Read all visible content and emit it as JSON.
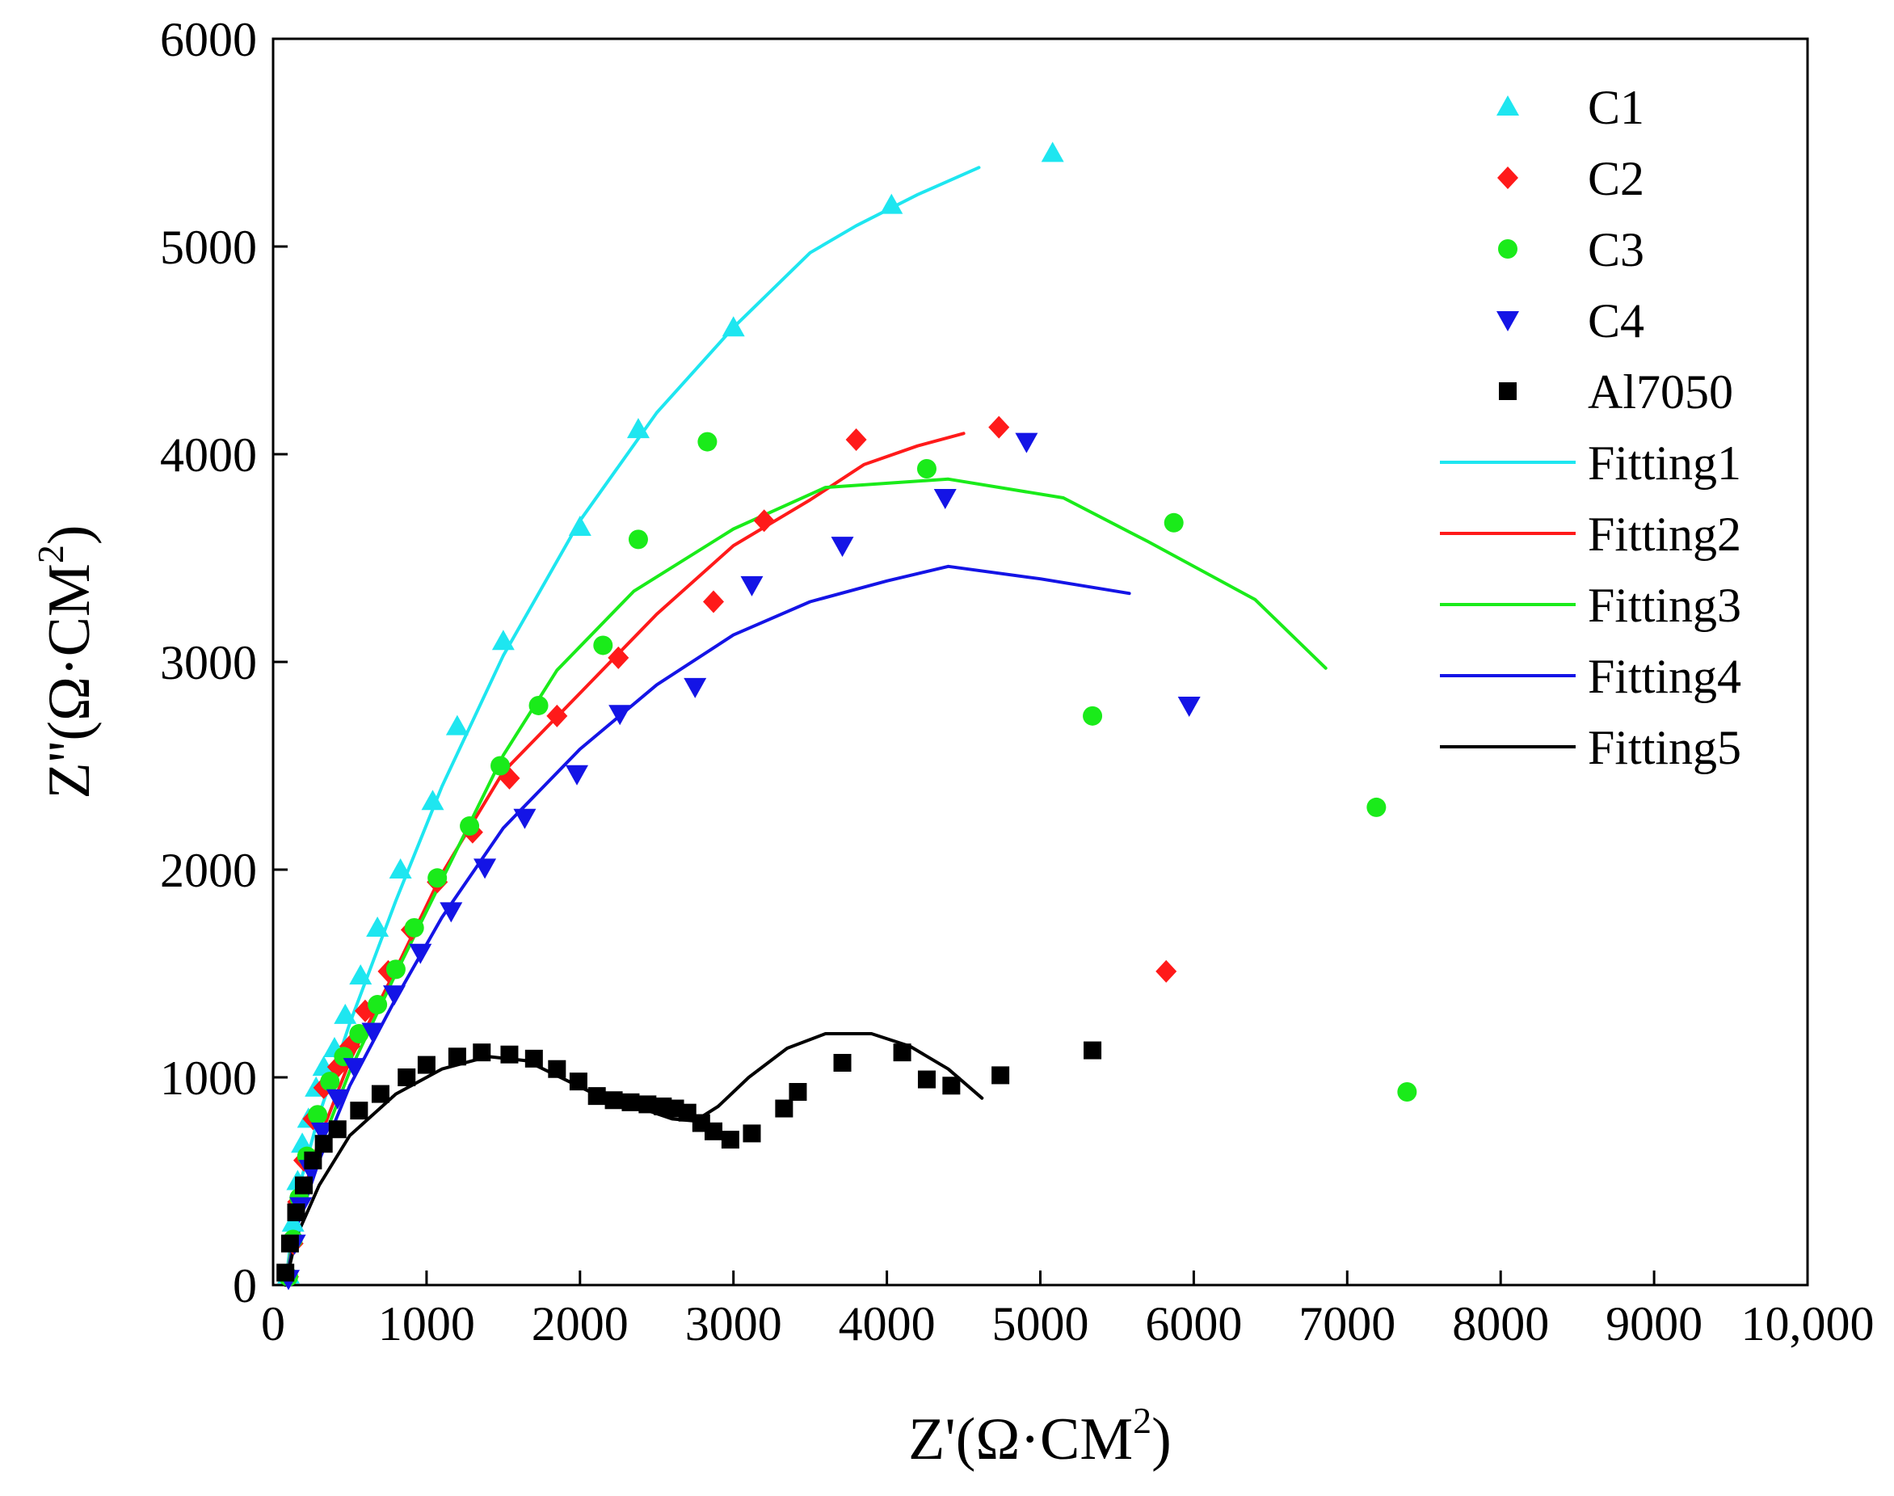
{
  "chart_data": {
    "type": "scatter",
    "title": "",
    "xlabel": {
      "main": "Z'(Ω·CM",
      "sup": "2",
      "close": ")"
    },
    "ylabel": {
      "main": "Z''(Ω·CM",
      "sup": "2",
      "close": ")"
    },
    "xlim": [
      0,
      10000
    ],
    "ylim": [
      0,
      6000
    ],
    "x_ticks": [
      {
        "value": 0,
        "label": "0"
      },
      {
        "value": 1000,
        "label": "1000"
      },
      {
        "value": 2000,
        "label": "2000"
      },
      {
        "value": 3000,
        "label": "3000"
      },
      {
        "value": 4000,
        "label": "4000"
      },
      {
        "value": 5000,
        "label": "5000"
      },
      {
        "value": 6000,
        "label": "6000"
      },
      {
        "value": 7000,
        "label": "7000"
      },
      {
        "value": 8000,
        "label": "8000"
      },
      {
        "value": 9000,
        "label": "9000"
      },
      {
        "value": 10000,
        "label": "10,000"
      }
    ],
    "y_ticks": [
      {
        "value": 0,
        "label": "0"
      },
      {
        "value": 1000,
        "label": "1000"
      },
      {
        "value": 2000,
        "label": "2000"
      },
      {
        "value": 3000,
        "label": "3000"
      },
      {
        "value": 4000,
        "label": "4000"
      },
      {
        "value": 5000,
        "label": "5000"
      },
      {
        "value": 6000,
        "label": "6000"
      }
    ],
    "grid": false,
    "legend_position": "top-right",
    "scatter_series": [
      {
        "name": "C1",
        "color": "#1ee6f0",
        "marker": "triangle-up",
        "points": [
          [
            100,
            50
          ],
          [
            130,
            300
          ],
          [
            160,
            500
          ],
          [
            190,
            680
          ],
          [
            230,
            800
          ],
          [
            280,
            950
          ],
          [
            330,
            1050
          ],
          [
            400,
            1140
          ],
          [
            470,
            1300
          ],
          [
            570,
            1490
          ],
          [
            680,
            1720
          ],
          [
            830,
            2000
          ],
          [
            1040,
            2330
          ],
          [
            1200,
            2690
          ],
          [
            1500,
            3100
          ],
          [
            2000,
            3650
          ],
          [
            2380,
            4120
          ],
          [
            3000,
            4610
          ],
          [
            4030,
            5200
          ],
          [
            5080,
            5450
          ]
        ]
      },
      {
        "name": "C2",
        "color": "#ff1a1a",
        "marker": "diamond",
        "points": [
          [
            100,
            40
          ],
          [
            130,
            200
          ],
          [
            160,
            400
          ],
          [
            200,
            600
          ],
          [
            260,
            800
          ],
          [
            330,
            950
          ],
          [
            420,
            1050
          ],
          [
            500,
            1150
          ],
          [
            600,
            1320
          ],
          [
            750,
            1510
          ],
          [
            900,
            1710
          ],
          [
            1070,
            1940
          ],
          [
            1300,
            2180
          ],
          [
            1540,
            2440
          ],
          [
            1850,
            2740
          ],
          [
            2250,
            3020
          ],
          [
            2870,
            3290
          ],
          [
            3200,
            3680
          ],
          [
            3800,
            4070
          ],
          [
            4730,
            4130
          ],
          [
            5820,
            1510
          ]
        ]
      },
      {
        "name": "C3",
        "color": "#1aeb1a",
        "marker": "circle",
        "points": [
          [
            100,
            40
          ],
          [
            130,
            220
          ],
          [
            170,
            420
          ],
          [
            220,
            620
          ],
          [
            290,
            820
          ],
          [
            370,
            980
          ],
          [
            460,
            1100
          ],
          [
            560,
            1210
          ],
          [
            680,
            1350
          ],
          [
            800,
            1520
          ],
          [
            920,
            1720
          ],
          [
            1070,
            1960
          ],
          [
            1280,
            2210
          ],
          [
            1480,
            2500
          ],
          [
            1730,
            2790
          ],
          [
            2150,
            3080
          ],
          [
            2380,
            3590
          ],
          [
            2830,
            4060
          ],
          [
            4260,
            3930
          ],
          [
            5870,
            3670
          ],
          [
            5340,
            2740
          ],
          [
            7190,
            2300
          ],
          [
            7390,
            930
          ]
        ]
      },
      {
        "name": "C4",
        "color": "#1414e6",
        "marker": "triangle-down",
        "points": [
          [
            100,
            30
          ],
          [
            140,
            200
          ],
          [
            180,
            380
          ],
          [
            240,
            560
          ],
          [
            320,
            740
          ],
          [
            420,
            900
          ],
          [
            530,
            1050
          ],
          [
            650,
            1220
          ],
          [
            790,
            1400
          ],
          [
            960,
            1600
          ],
          [
            1160,
            1800
          ],
          [
            1380,
            2010
          ],
          [
            1640,
            2250
          ],
          [
            1980,
            2460
          ],
          [
            2260,
            2750
          ],
          [
            2750,
            2880
          ],
          [
            3120,
            3370
          ],
          [
            3710,
            3560
          ],
          [
            4380,
            3790
          ],
          [
            4910,
            4060
          ],
          [
            5970,
            2790
          ]
        ]
      },
      {
        "name": "Al7050",
        "color": "#000000",
        "marker": "square",
        "points": [
          [
            80,
            60
          ],
          [
            110,
            200
          ],
          [
            150,
            350
          ],
          [
            200,
            480
          ],
          [
            260,
            600
          ],
          [
            330,
            680
          ],
          [
            420,
            750
          ],
          [
            560,
            840
          ],
          [
            700,
            920
          ],
          [
            870,
            1000
          ],
          [
            1000,
            1060
          ],
          [
            1200,
            1100
          ],
          [
            1360,
            1120
          ],
          [
            1540,
            1110
          ],
          [
            1700,
            1090
          ],
          [
            1850,
            1040
          ],
          [
            1990,
            980
          ],
          [
            2110,
            910
          ],
          [
            2220,
            890
          ],
          [
            2330,
            880
          ],
          [
            2440,
            870
          ],
          [
            2540,
            860
          ],
          [
            2620,
            850
          ],
          [
            2700,
            830
          ],
          [
            2790,
            780
          ],
          [
            2870,
            740
          ],
          [
            2980,
            700
          ],
          [
            3120,
            730
          ],
          [
            3330,
            850
          ],
          [
            3420,
            930
          ],
          [
            3710,
            1070
          ],
          [
            4100,
            1120
          ],
          [
            4260,
            990
          ],
          [
            4420,
            960
          ],
          [
            4740,
            1010
          ],
          [
            5340,
            1130
          ]
        ]
      }
    ],
    "line_series": [
      {
        "name": "Fitting1",
        "color": "#1ee6f0",
        "points": [
          [
            80,
            0
          ],
          [
            150,
            420
          ],
          [
            300,
            820
          ],
          [
            500,
            1260
          ],
          [
            800,
            1850
          ],
          [
            1100,
            2400
          ],
          [
            1500,
            3030
          ],
          [
            2000,
            3680
          ],
          [
            2500,
            4200
          ],
          [
            3000,
            4610
          ],
          [
            3500,
            4970
          ],
          [
            3800,
            5100
          ],
          [
            4200,
            5250
          ],
          [
            4600,
            5380
          ]
        ]
      },
      {
        "name": "Fitting2",
        "color": "#ff1a1a",
        "points": [
          [
            80,
            0
          ],
          [
            150,
            320
          ],
          [
            300,
            700
          ],
          [
            500,
            1080
          ],
          [
            800,
            1520
          ],
          [
            1100,
            1980
          ],
          [
            1500,
            2470
          ],
          [
            2000,
            2850
          ],
          [
            2500,
            3230
          ],
          [
            3000,
            3560
          ],
          [
            3500,
            3780
          ],
          [
            3850,
            3950
          ],
          [
            4200,
            4040
          ],
          [
            4500,
            4100
          ]
        ]
      },
      {
        "name": "Fitting3",
        "color": "#1aeb1a",
        "points": [
          [
            80,
            0
          ],
          [
            150,
            300
          ],
          [
            300,
            650
          ],
          [
            500,
            1030
          ],
          [
            800,
            1500
          ],
          [
            1100,
            1950
          ],
          [
            1500,
            2550
          ],
          [
            1850,
            2960
          ],
          [
            2350,
            3340
          ],
          [
            3000,
            3640
          ],
          [
            3600,
            3840
          ],
          [
            4400,
            3880
          ],
          [
            5150,
            3790
          ],
          [
            5700,
            3580
          ],
          [
            6400,
            3300
          ],
          [
            6860,
            2970
          ]
        ]
      },
      {
        "name": "Fitting4",
        "color": "#1414e6",
        "points": [
          [
            80,
            0
          ],
          [
            150,
            270
          ],
          [
            300,
            600
          ],
          [
            500,
            960
          ],
          [
            800,
            1380
          ],
          [
            1100,
            1770
          ],
          [
            1500,
            2200
          ],
          [
            2000,
            2580
          ],
          [
            2500,
            2890
          ],
          [
            3000,
            3130
          ],
          [
            3500,
            3290
          ],
          [
            4000,
            3390
          ],
          [
            4400,
            3460
          ],
          [
            5000,
            3400
          ],
          [
            5580,
            3330
          ]
        ]
      },
      {
        "name": "Fitting5",
        "color": "#000000",
        "points": [
          [
            80,
            0
          ],
          [
            150,
            230
          ],
          [
            300,
            480
          ],
          [
            500,
            720
          ],
          [
            800,
            920
          ],
          [
            1100,
            1040
          ],
          [
            1400,
            1100
          ],
          [
            1650,
            1080
          ],
          [
            1900,
            990
          ],
          [
            2150,
            900
          ],
          [
            2400,
            850
          ],
          [
            2600,
            800
          ],
          [
            2750,
            790
          ],
          [
            2900,
            860
          ],
          [
            3100,
            1000
          ],
          [
            3350,
            1140
          ],
          [
            3600,
            1210
          ],
          [
            3900,
            1210
          ],
          [
            4150,
            1150
          ],
          [
            4400,
            1040
          ],
          [
            4620,
            900
          ]
        ]
      }
    ]
  }
}
